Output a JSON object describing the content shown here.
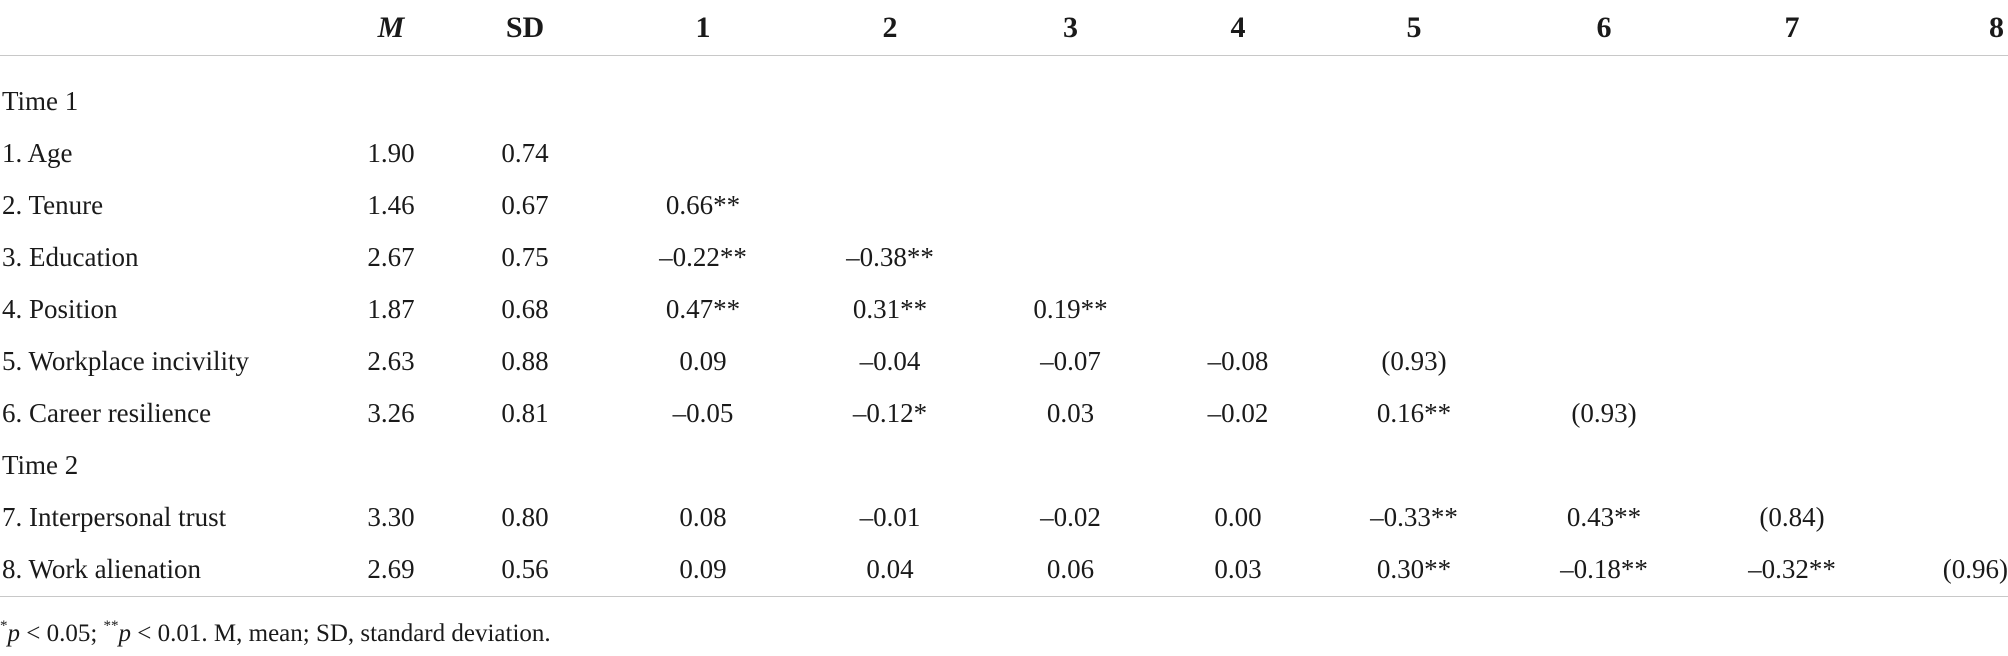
{
  "header": {
    "label": "",
    "m": "M",
    "sd": "SD",
    "c1": "1",
    "c2": "2",
    "c3": "3",
    "c4": "4",
    "c5": "5",
    "c6": "6",
    "c7": "7",
    "c8": "8"
  },
  "rows": [
    {
      "label": "Time 1"
    },
    {
      "label": "1. Age",
      "m": "1.90",
      "sd": "0.74",
      "c1": "",
      "c2": "",
      "c3": "",
      "c4": "",
      "c5": "",
      "c6": "",
      "c7": "",
      "c8": ""
    },
    {
      "label": "2. Tenure",
      "m": "1.46",
      "sd": "0.67",
      "c1": "0.66**",
      "c2": "",
      "c3": "",
      "c4": "",
      "c5": "",
      "c6": "",
      "c7": "",
      "c8": ""
    },
    {
      "label": "3. Education",
      "m": "2.67",
      "sd": "0.75",
      "c1": "–0.22**",
      "c2": "–0.38**",
      "c3": "",
      "c4": "",
      "c5": "",
      "c6": "",
      "c7": "",
      "c8": ""
    },
    {
      "label": "4. Position",
      "m": "1.87",
      "sd": "0.68",
      "c1": "0.47**",
      "c2": "0.31**",
      "c3": "0.19**",
      "c4": "",
      "c5": "",
      "c6": "",
      "c7": "",
      "c8": ""
    },
    {
      "label": "5. Workplace incivility",
      "m": "2.63",
      "sd": "0.88",
      "c1": "0.09",
      "c2": "–0.04",
      "c3": "–0.07",
      "c4": "–0.08",
      "c5": "(0.93)",
      "c6": "",
      "c7": "",
      "c8": ""
    },
    {
      "label": "6. Career resilience",
      "m": "3.26",
      "sd": "0.81",
      "c1": "–0.05",
      "c2": "–0.12*",
      "c3": "0.03",
      "c4": "–0.02",
      "c5": "0.16**",
      "c6": "(0.93)",
      "c7": "",
      "c8": ""
    },
    {
      "label": "Time 2"
    },
    {
      "label": "7. Interpersonal trust",
      "m": "3.30",
      "sd": "0.80",
      "c1": "0.08",
      "c2": "–0.01",
      "c3": "–0.02",
      "c4": "0.00",
      "c5": "–0.33**",
      "c6": "0.43**",
      "c7": "(0.84)",
      "c8": ""
    },
    {
      "label": "8. Work alienation",
      "m": "2.69",
      "sd": "0.56",
      "c1": "0.09",
      "c2": "0.04",
      "c3": "0.06",
      "c4": "0.03",
      "c5": "0.30**",
      "c6": "–0.18**",
      "c7": "–0.32**",
      "c8": "(0.96)"
    }
  ],
  "note": {
    "star1": "*",
    "p1": "p",
    "t1": " < 0.05; ",
    "star2": "**",
    "p2": "p",
    "t2": " < 0.01. M, mean; SD, standard deviation."
  }
}
